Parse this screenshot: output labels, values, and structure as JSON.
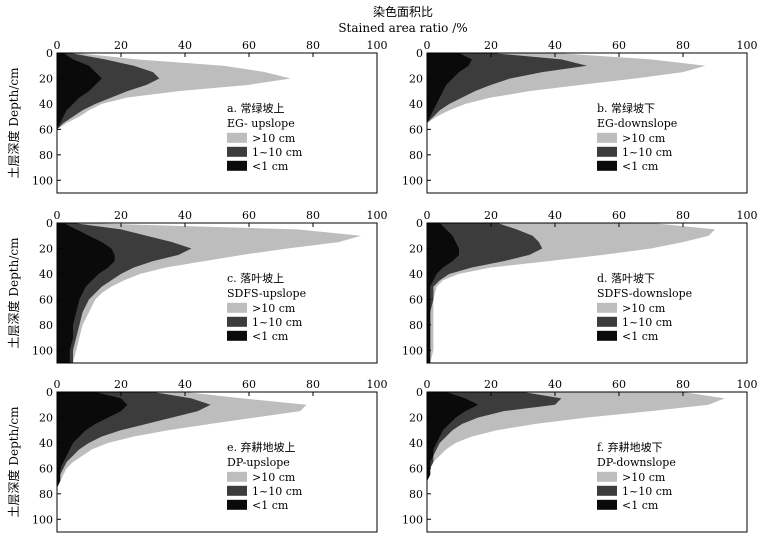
{
  "figure": {
    "top_title_cn": "染色面积比",
    "top_title_en": "Stained area ratio /%",
    "ylabel": "土层深度 Depth/cm"
  },
  "colors": {
    "gt10": "#bdbdbd",
    "mid": "#3c3c3c",
    "lt1": "#0a0a0a"
  },
  "chart_data": [
    {
      "id": "a",
      "type": "area",
      "label_cn": "a. 常绿坡上",
      "label_en": "EG- upslope",
      "xlim": [
        0,
        100
      ],
      "ylim": [
        0,
        110
      ],
      "xticks": [
        "0",
        "20",
        "40",
        "60",
        "80",
        "100"
      ],
      "yticks": [
        "0",
        "20",
        "40",
        "60",
        "80",
        "100"
      ],
      "legend": [
        ">10 cm",
        "1~10 cm",
        "<1 cm"
      ],
      "depth": [
        0,
        5,
        10,
        15,
        20,
        25,
        30,
        35,
        40,
        45,
        50,
        55,
        60
      ],
      "series": [
        {
          "name": ">10 cm",
          "values": [
            6,
            25,
            52,
            65,
            73,
            60,
            38,
            22,
            14,
            10,
            7,
            3,
            0
          ]
        },
        {
          "name": "1~10 cm",
          "values": [
            4,
            15,
            24,
            30,
            32,
            28,
            22,
            17,
            12,
            8,
            5,
            2,
            0
          ]
        },
        {
          "name": "<1 cm",
          "values": [
            2,
            5,
            10,
            12,
            14,
            12,
            10,
            7,
            5,
            3,
            2,
            1,
            0
          ]
        }
      ]
    },
    {
      "id": "b",
      "type": "area",
      "label_cn": "b. 常绿坡下",
      "label_en": "EG-downslope",
      "xlim": [
        0,
        100
      ],
      "ylim": [
        0,
        110
      ],
      "xticks": [
        "0",
        "20",
        "40",
        "60",
        "80",
        "100"
      ],
      "yticks": [
        "0",
        "20",
        "40",
        "60",
        "80",
        "100"
      ],
      "legend": [
        ">10 cm",
        "1~10 cm",
        "<1 cm"
      ],
      "depth": [
        0,
        5,
        10,
        15,
        20,
        25,
        30,
        35,
        40,
        45,
        50,
        55
      ],
      "series": [
        {
          "name": ">10 cm",
          "values": [
            40,
            70,
            87,
            80,
            65,
            48,
            32,
            20,
            12,
            7,
            3,
            0
          ]
        },
        {
          "name": "1~10 cm",
          "values": [
            20,
            42,
            50,
            36,
            26,
            20,
            15,
            11,
            7,
            4,
            2,
            0
          ]
        },
        {
          "name": "<1 cm",
          "values": [
            10,
            14,
            13,
            10,
            8,
            6,
            5,
            4,
            3,
            2,
            1,
            0
          ]
        }
      ]
    },
    {
      "id": "c",
      "type": "area",
      "label_cn": "c. 落叶坡上",
      "label_en": "SDFS-upslope",
      "xlim": [
        0,
        100
      ],
      "ylim": [
        0,
        110
      ],
      "xticks": [
        "0",
        "20",
        "40",
        "60",
        "80",
        "100"
      ],
      "yticks": [
        "0",
        "20",
        "40",
        "60",
        "80",
        "100"
      ],
      "legend": [
        ">10 cm",
        "1~10 cm",
        "<1 cm"
      ],
      "depth": [
        0,
        5,
        10,
        15,
        20,
        25,
        30,
        35,
        40,
        45,
        50,
        55,
        60,
        70,
        80,
        90,
        100,
        110
      ],
      "series": [
        {
          "name": ">10 cm",
          "values": [
            8,
            75,
            95,
            88,
            72,
            58,
            46,
            34,
            26,
            21,
            17,
            14,
            12,
            10,
            8,
            7,
            6,
            5
          ]
        },
        {
          "name": "1~10 cm",
          "values": [
            5,
            20,
            28,
            36,
            42,
            38,
            30,
            24,
            20,
            17,
            14,
            12,
            10,
            8,
            7,
            6,
            5,
            5
          ]
        },
        {
          "name": "<1 cm",
          "values": [
            2,
            6,
            10,
            14,
            17,
            18,
            18,
            16,
            13,
            11,
            9,
            8,
            7,
            6,
            5,
            5,
            4,
            4
          ]
        }
      ]
    },
    {
      "id": "d",
      "type": "area",
      "label_cn": "d. 落叶坡下",
      "label_en": "SDFS-downslope",
      "xlim": [
        0,
        100
      ],
      "ylim": [
        0,
        110
      ],
      "xticks": [
        "0",
        "20",
        "40",
        "60",
        "80",
        "100"
      ],
      "yticks": [
        "0",
        "20",
        "40",
        "60",
        "80",
        "100"
      ],
      "legend": [
        ">10 cm",
        "1~10 cm",
        "<1 cm"
      ],
      "depth": [
        0,
        5,
        10,
        15,
        20,
        25,
        30,
        35,
        40,
        45,
        50,
        60,
        70,
        80,
        90,
        100,
        110
      ],
      "series": [
        {
          "name": ">10 cm",
          "values": [
            70,
            90,
            88,
            80,
            70,
            55,
            38,
            20,
            10,
            5,
            3,
            2,
            2,
            2,
            2,
            2,
            1
          ]
        },
        {
          "name": "1~10 cm",
          "values": [
            22,
            28,
            33,
            35,
            36,
            32,
            24,
            14,
            7,
            4,
            2,
            2,
            1,
            1,
            1,
            1,
            1
          ]
        },
        {
          "name": "<1 cm",
          "values": [
            4,
            6,
            8,
            9,
            10,
            10,
            8,
            5,
            3,
            2,
            1,
            1,
            1,
            1,
            1,
            1,
            1
          ]
        }
      ]
    },
    {
      "id": "e",
      "type": "area",
      "label_cn": "e. 弃耕地坡上",
      "label_en": "DP-upslope",
      "xlim": [
        0,
        100
      ],
      "ylim": [
        0,
        110
      ],
      "xticks": [
        "0",
        "20",
        "40",
        "60",
        "80",
        "100"
      ],
      "yticks": [
        "0",
        "20",
        "40",
        "60",
        "80",
        "100"
      ],
      "legend": [
        ">10 cm",
        "1~10 cm",
        "<1 cm"
      ],
      "depth": [
        0,
        5,
        10,
        15,
        20,
        25,
        30,
        35,
        40,
        45,
        50,
        55,
        60,
        65,
        70,
        75
      ],
      "series": [
        {
          "name": ">10 cm",
          "values": [
            40,
            58,
            78,
            76,
            62,
            48,
            35,
            24,
            16,
            11,
            8,
            5,
            3,
            2,
            1,
            0
          ]
        },
        {
          "name": "1~10 cm",
          "values": [
            30,
            42,
            48,
            44,
            36,
            28,
            20,
            14,
            10,
            7,
            5,
            3,
            2,
            1,
            1,
            0
          ]
        },
        {
          "name": "<1 cm",
          "values": [
            12,
            20,
            22,
            20,
            16,
            12,
            9,
            7,
            5,
            4,
            3,
            2,
            1,
            1,
            1,
            0
          ]
        }
      ]
    },
    {
      "id": "f",
      "type": "area",
      "label_cn": "f. 弃耕地坡下",
      "label_en": "DP-downslope",
      "xlim": [
        0,
        100
      ],
      "ylim": [
        0,
        110
      ],
      "xticks": [
        "0",
        "20",
        "40",
        "60",
        "80",
        "100"
      ],
      "yticks": [
        "0",
        "20",
        "40",
        "60",
        "80",
        "100"
      ],
      "legend": [
        ">10 cm",
        "1~10 cm",
        "<1 cm"
      ],
      "depth": [
        0,
        5,
        10,
        15,
        20,
        25,
        30,
        35,
        40,
        45,
        50,
        55,
        60,
        65,
        70
      ],
      "series": [
        {
          "name": ">10 cm",
          "values": [
            80,
            93,
            88,
            70,
            50,
            34,
            22,
            14,
            9,
            6,
            4,
            2,
            1,
            1,
            0
          ]
        },
        {
          "name": "1~10 cm",
          "values": [
            30,
            42,
            40,
            24,
            16,
            11,
            8,
            6,
            4,
            3,
            2,
            2,
            1,
            1,
            0
          ]
        },
        {
          "name": "<1 cm",
          "values": [
            6,
            12,
            16,
            12,
            9,
            7,
            5,
            4,
            3,
            2,
            2,
            1,
            1,
            1,
            0
          ]
        }
      ]
    }
  ]
}
